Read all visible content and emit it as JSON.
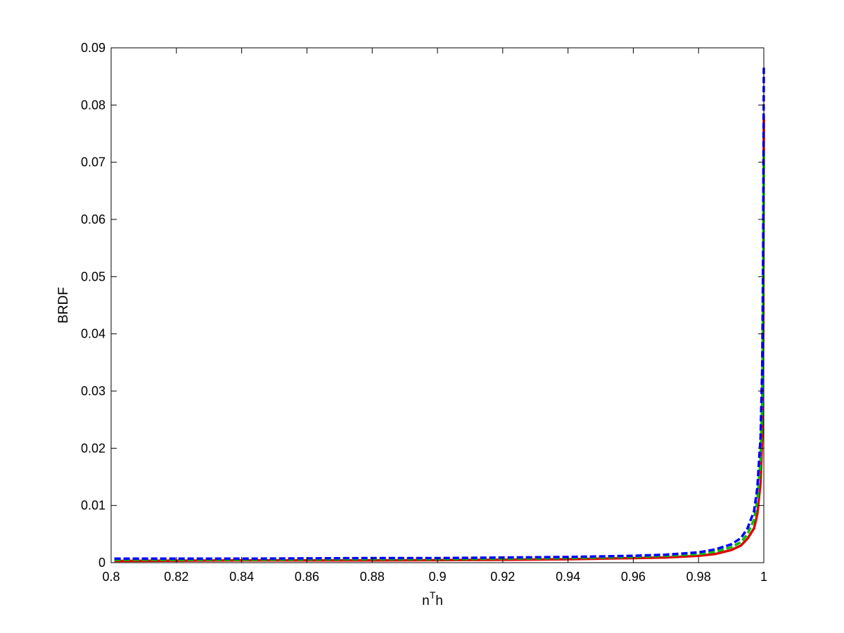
{
  "chart_data": {
    "type": "line",
    "title": "",
    "xlabel_base": "n",
    "xlabel_sup": "T",
    "xlabel_tail": "h",
    "ylabel": "BRDF",
    "xlim": [
      0.8,
      1.0
    ],
    "ylim": [
      0,
      0.09
    ],
    "grid": false,
    "legend": "none",
    "x_ticks": [
      0.8,
      0.82,
      0.84,
      0.86,
      0.88,
      0.9,
      0.92,
      0.94,
      0.96,
      0.98,
      1.0
    ],
    "x_tick_labels": [
      "0.8",
      "0.82",
      "0.84",
      "0.86",
      "0.88",
      "0.9",
      "0.92",
      "0.94",
      "0.96",
      "0.98",
      "1"
    ],
    "y_ticks": [
      0,
      0.01,
      0.02,
      0.03,
      0.04,
      0.05,
      0.06,
      0.07,
      0.08,
      0.09
    ],
    "y_tick_labels": [
      "0",
      "0.01",
      "0.02",
      "0.03",
      "0.04",
      "0.05",
      "0.06",
      "0.07",
      "0.08",
      "0.09"
    ],
    "series": [
      {
        "color": "#e00000",
        "style": "solid",
        "x": [
          0.801,
          0.84,
          0.88,
          0.9,
          0.92,
          0.94,
          0.96,
          0.97,
          0.98,
          0.985,
          0.99,
          0.993,
          0.995,
          0.997,
          0.998,
          0.999,
          0.9995,
          0.9998,
          1.0
        ],
        "y": [
          0.0003,
          0.0004,
          0.0004,
          0.00045,
          0.0005,
          0.0006,
          0.0008,
          0.0009,
          0.0012,
          0.0015,
          0.0022,
          0.003,
          0.0042,
          0.006,
          0.0085,
          0.014,
          0.022,
          0.04,
          0.078
        ]
      },
      {
        "color": "#00c000",
        "style": "dashed",
        "x": [
          0.801,
          0.84,
          0.88,
          0.9,
          0.92,
          0.94,
          0.96,
          0.97,
          0.98,
          0.985,
          0.99,
          0.993,
          0.995,
          0.997,
          0.998,
          0.999,
          0.9995,
          0.9998,
          1.0
        ],
        "y": [
          0.0005,
          0.0005,
          0.0006,
          0.0006,
          0.0007,
          0.0008,
          0.001,
          0.0012,
          0.0015,
          0.0019,
          0.0027,
          0.0036,
          0.005,
          0.0075,
          0.011,
          0.018,
          0.028,
          0.047,
          0.072
        ]
      },
      {
        "color": "#0000ff",
        "style": "dashed",
        "x": [
          0.801,
          0.84,
          0.88,
          0.9,
          0.92,
          0.94,
          0.96,
          0.97,
          0.98,
          0.985,
          0.99,
          0.993,
          0.995,
          0.997,
          0.998,
          0.999,
          0.9995,
          0.9998,
          1.0
        ],
        "y": [
          0.0007,
          0.0007,
          0.0008,
          0.0008,
          0.0009,
          0.001,
          0.0012,
          0.0014,
          0.0018,
          0.0023,
          0.0032,
          0.0043,
          0.006,
          0.009,
          0.013,
          0.022,
          0.034,
          0.055,
          0.087
        ]
      }
    ]
  }
}
